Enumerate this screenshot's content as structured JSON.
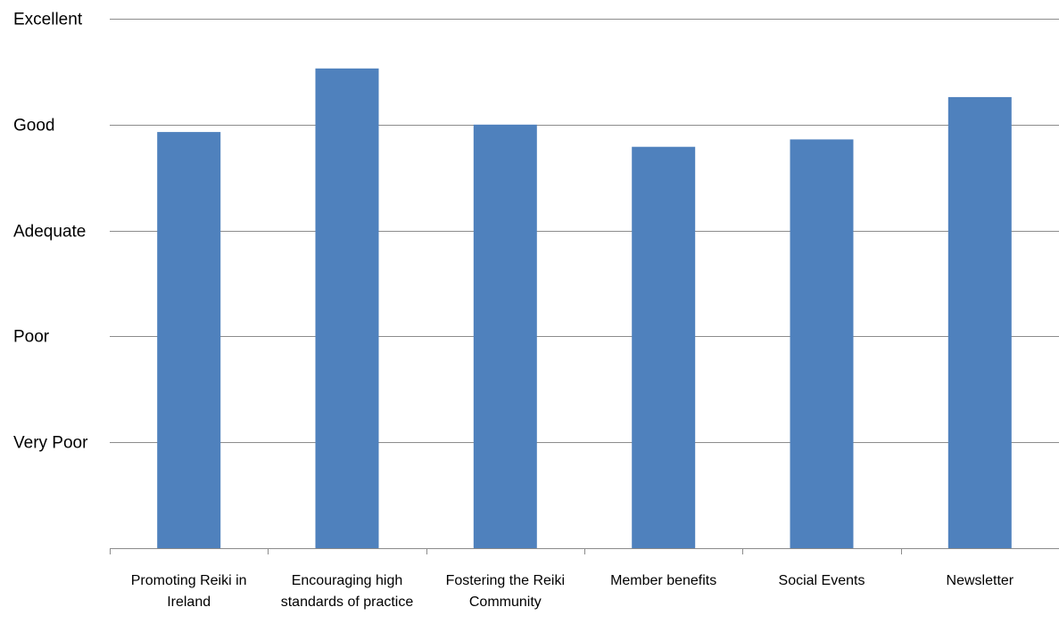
{
  "chart_data": {
    "type": "bar",
    "categories": [
      "Promoting Reiki in Ireland",
      "Encouraging high standards of practice",
      "Fostering the  Reiki Community",
      "Member benefits",
      "Social Events",
      "Newsletter"
    ],
    "values": [
      3.93,
      4.53,
      4.0,
      3.79,
      3.86,
      4.26
    ],
    "y_tick_values": [
      0,
      1,
      2,
      3,
      4,
      5
    ],
    "y_tick_labels": [
      "",
      "Very Poor",
      "Poor",
      "Adequate",
      "Good",
      "Excellent"
    ],
    "ylim": [
      0,
      5
    ],
    "grid": true,
    "legend": "none",
    "bar_color": "#4F81BD",
    "grid_color": "#8c8c8c",
    "axis_color": "#8c8c8c"
  }
}
